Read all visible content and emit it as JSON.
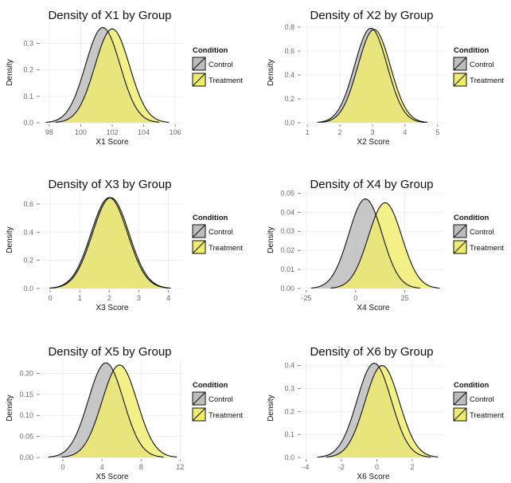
{
  "chart_data": [
    {
      "type": "area",
      "title": "Density of X1 by Group",
      "xlabel": "X1 Score",
      "ylabel": "Density",
      "xlim": [
        97.5,
        106.5
      ],
      "ylim": [
        0,
        0.38
      ],
      "xticks": [
        "98",
        "100",
        "102",
        "104",
        "106"
      ],
      "xtick_values": [
        98,
        100,
        102,
        104,
        106
      ],
      "yticks": [
        "0.0",
        "0.1",
        "0.2",
        "0.3"
      ],
      "ytick_values": [
        0,
        0.1,
        0.2,
        0.3
      ],
      "grid": true,
      "legend": {
        "title": "Condition",
        "position": "right",
        "items": [
          "Control",
          "Treatment"
        ]
      },
      "series": [
        {
          "name": "Control",
          "color": "#bdbdbd",
          "mean": 101.4,
          "sd": 1.1,
          "peak": 0.36
        },
        {
          "name": "Treatment",
          "color": "#f0ec6a",
          "mean": 102.0,
          "sd": 1.1,
          "peak": 0.355
        }
      ]
    },
    {
      "type": "area",
      "title": "Density of X2 by Group",
      "xlabel": "X2 Score",
      "ylabel": "Density",
      "xlim": [
        0.85,
        5.2
      ],
      "ylim": [
        0,
        0.84
      ],
      "xticks": [
        "1",
        "2",
        "3",
        "4",
        "5"
      ],
      "xtick_values": [
        1,
        2,
        3,
        4,
        5
      ],
      "yticks": [
        "0.0",
        "0.2",
        "0.4",
        "0.6",
        "0.8"
      ],
      "ytick_values": [
        0,
        0.2,
        0.4,
        0.6,
        0.8
      ],
      "grid": true,
      "legend": {
        "title": "Condition",
        "position": "right",
        "items": [
          "Control",
          "Treatment"
        ]
      },
      "series": [
        {
          "name": "Control",
          "color": "#bdbdbd",
          "mean": 2.95,
          "sd": 0.5,
          "peak": 0.79
        },
        {
          "name": "Treatment",
          "color": "#f0ec6a",
          "mean": 3.05,
          "sd": 0.5,
          "peak": 0.78
        }
      ]
    },
    {
      "type": "area",
      "title": "Density of X3 by Group",
      "xlabel": "X3 Score",
      "ylabel": "Density",
      "xlim": [
        -0.3,
        4.5
      ],
      "ylim": [
        0,
        0.69
      ],
      "xticks": [
        "0",
        "1",
        "2",
        "3",
        "4"
      ],
      "xtick_values": [
        0,
        1,
        2,
        3,
        4
      ],
      "yticks": [
        "0.0",
        "0.2",
        "0.4",
        "0.6"
      ],
      "ytick_values": [
        0,
        0.2,
        0.4,
        0.6
      ],
      "grid": true,
      "legend": {
        "title": "Condition",
        "position": "right",
        "items": [
          "Control",
          "Treatment"
        ]
      },
      "series": [
        {
          "name": "Control",
          "color": "#bdbdbd",
          "mean": 2.0,
          "sd": 0.62,
          "peak": 0.645
        },
        {
          "name": "Treatment",
          "color": "#f0ec6a",
          "mean": 2.05,
          "sd": 0.62,
          "peak": 0.645
        }
      ]
    },
    {
      "type": "area",
      "title": "Density of X4 by Group",
      "xlabel": "X4 Score",
      "ylabel": "Density",
      "xlim": [
        -27,
        45
      ],
      "ylim": [
        0,
        0.051
      ],
      "xticks": [
        "-25",
        "0",
        "25"
      ],
      "xtick_values": [
        -25,
        0,
        25
      ],
      "yticks": [
        "0.00",
        "0.01",
        "0.02",
        "0.03",
        "0.04",
        "0.05"
      ],
      "ytick_values": [
        0,
        0.01,
        0.02,
        0.03,
        0.04,
        0.05
      ],
      "grid": true,
      "legend": {
        "title": "Condition",
        "position": "right",
        "items": [
          "Control",
          "Treatment"
        ]
      },
      "series": [
        {
          "name": "Control",
          "color": "#bdbdbd",
          "mean": 5,
          "sd": 8.5,
          "peak": 0.047
        },
        {
          "name": "Treatment",
          "color": "#f0ec6a",
          "mean": 15,
          "sd": 8.5,
          "peak": 0.045
        }
      ]
    },
    {
      "type": "area",
      "title": "Density of X5 by Group",
      "xlabel": "X5 Score",
      "ylabel": "Density",
      "xlim": [
        -2.2,
        12.3
      ],
      "ylim": [
        0,
        0.235
      ],
      "xticks": [
        "0",
        "4",
        "8",
        "12"
      ],
      "xtick_values": [
        0,
        4,
        8,
        12
      ],
      "yticks": [
        "0.00",
        "0.05",
        "0.10",
        "0.15",
        "0.20"
      ],
      "ytick_values": [
        0,
        0.05,
        0.1,
        0.15,
        0.2
      ],
      "grid": true,
      "legend": {
        "title": "Condition",
        "position": "right",
        "items": [
          "Control",
          "Treatment"
        ]
      },
      "series": [
        {
          "name": "Control",
          "color": "#bdbdbd",
          "mean": 4.4,
          "sd": 1.8,
          "peak": 0.225
        },
        {
          "name": "Treatment",
          "color": "#f0ec6a",
          "mean": 5.8,
          "sd": 1.8,
          "peak": 0.22
        }
      ]
    },
    {
      "type": "area",
      "title": "Density of X6 by Group",
      "xlabel": "X6 Score",
      "ylabel": "Density",
      "xlim": [
        -4.2,
        3.8
      ],
      "ylim": [
        0,
        0.43
      ],
      "xticks": [
        "-4",
        "-2",
        "0",
        "2"
      ],
      "xtick_values": [
        -4,
        -2,
        0,
        2
      ],
      "yticks": [
        "0.0",
        "0.1",
        "0.2",
        "0.3",
        "0.4"
      ],
      "ytick_values": [
        0,
        0.1,
        0.2,
        0.3,
        0.4
      ],
      "grid": true,
      "legend": {
        "title": "Condition",
        "position": "right",
        "items": [
          "Control",
          "Treatment"
        ]
      },
      "series": [
        {
          "name": "Control",
          "color": "#bdbdbd",
          "mean": -0.15,
          "sd": 0.97,
          "peak": 0.41
        },
        {
          "name": "Treatment",
          "color": "#f0ec6a",
          "mean": 0.3,
          "sd": 0.97,
          "peak": 0.4
        }
      ]
    }
  ]
}
